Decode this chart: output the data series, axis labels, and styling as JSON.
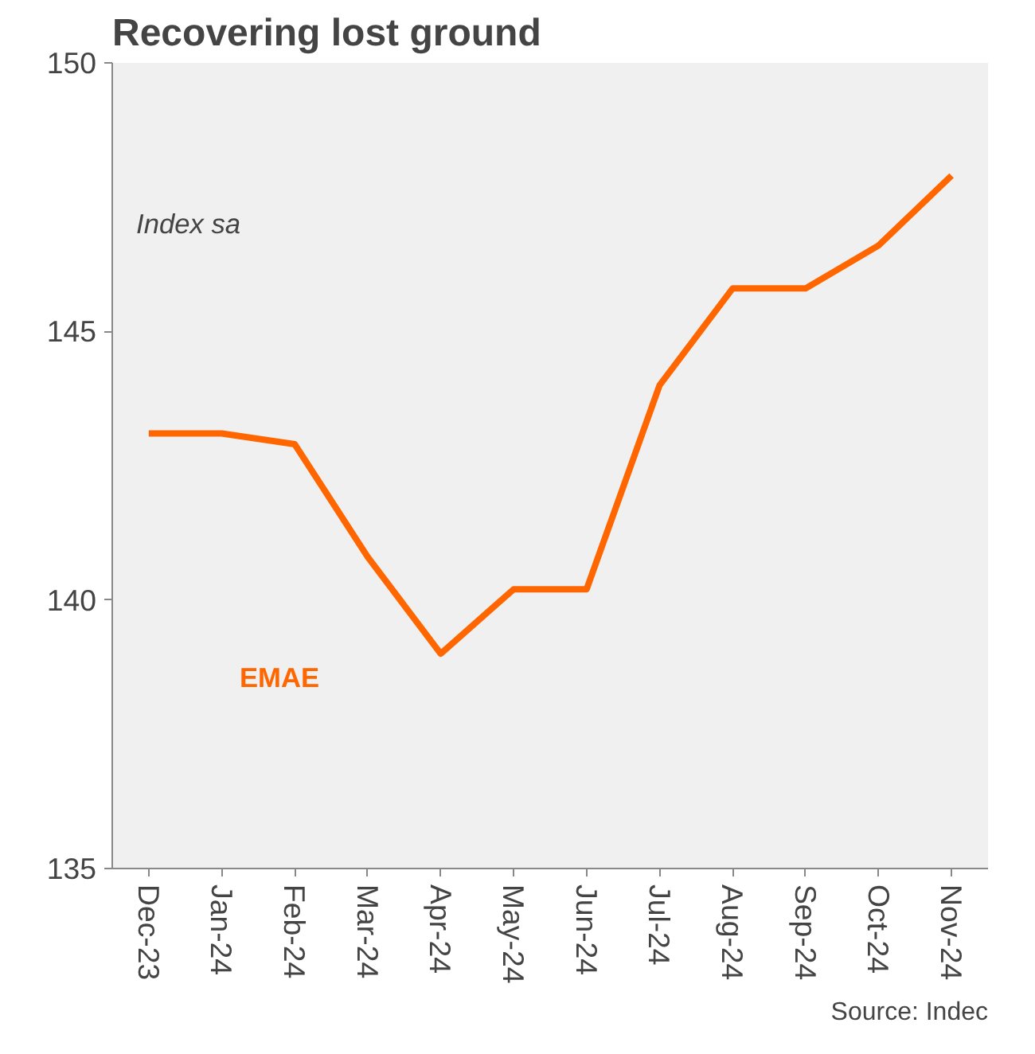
{
  "chart_data": {
    "type": "line",
    "title": "Recovering lost ground",
    "categories": [
      "Dec-23",
      "Jan-24",
      "Feb-24",
      "Mar-24",
      "Apr-24",
      "May-24",
      "Jun-24",
      "Jul-24",
      "Aug-24",
      "Sep-24",
      "Oct-24",
      "Nov-24"
    ],
    "series": [
      {
        "name": "EMAE",
        "color": "#ff6600",
        "values": [
          143.1,
          143.1,
          142.9,
          140.8,
          139.0,
          140.2,
          140.2,
          144.0,
          145.8,
          145.8,
          146.6,
          147.9
        ]
      }
    ],
    "ylim": [
      135,
      150
    ],
    "yticks": [
      135,
      140,
      145,
      150
    ],
    "annotations": [
      "Index sa",
      "Source: Indec"
    ],
    "grid": false,
    "legend": false
  }
}
